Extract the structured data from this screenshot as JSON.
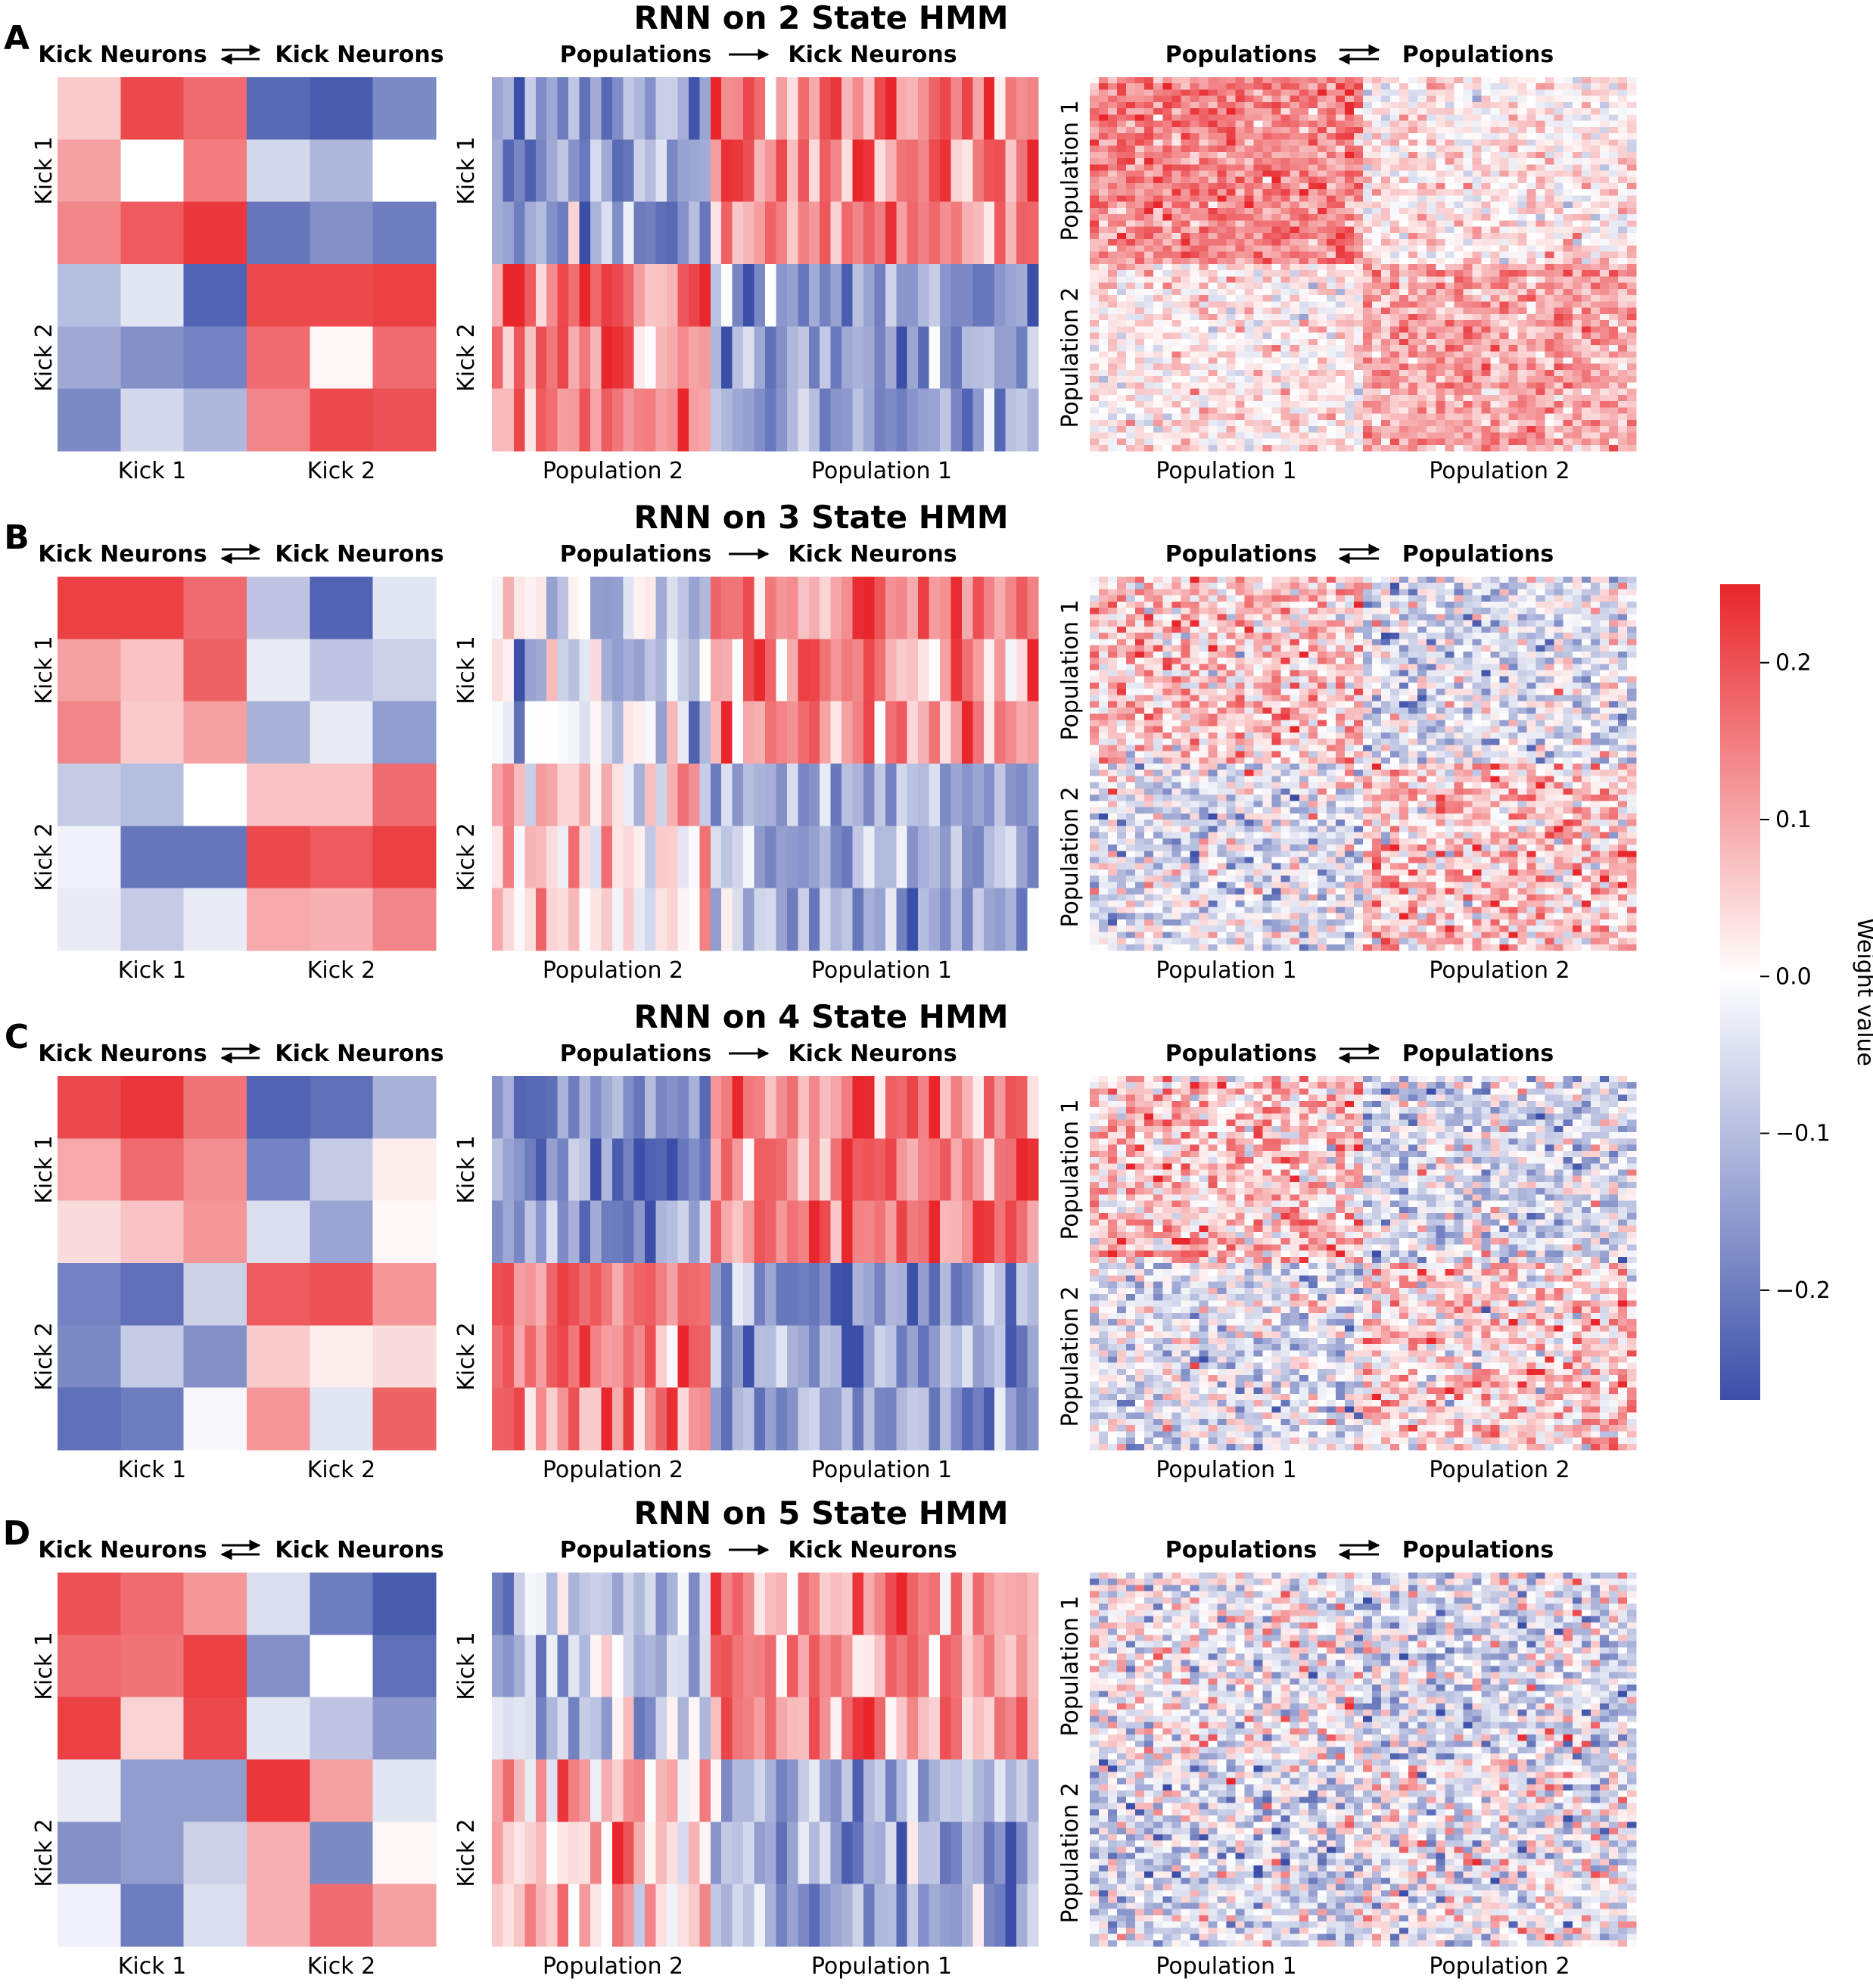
{
  "colors": {
    "positive": "#e8262b",
    "zero": "#ffffff",
    "negative": "#3b4fa8"
  },
  "colorbar": {
    "label": "Weight value",
    "vmin": -0.27,
    "vmax": 0.25,
    "ticks": [
      "0.2",
      "0.1",
      "0.0",
      "−0.1",
      "−0.2"
    ],
    "tick_values": [
      0.2,
      0.1,
      0.0,
      -0.1,
      -0.2
    ]
  },
  "chart_data": [
    {
      "panel": "A",
      "title": "RNN on 2 State HMM",
      "kk": {
        "type": "heatmap",
        "title_left": "Kick Neurons",
        "title_right": "Kick Neurons",
        "rows": [
          "Kick 1",
          "Kick 2"
        ],
        "cols": [
          "Kick 1",
          "Kick 2"
        ],
        "values": [
          [
            0.06,
            0.21,
            0.17,
            -0.23,
            -0.25,
            -0.18
          ],
          [
            0.11,
            0.0,
            0.15,
            -0.06,
            -0.11,
            0.0
          ],
          [
            0.14,
            0.19,
            0.23,
            -0.21,
            -0.17,
            -0.2
          ],
          [
            -0.1,
            -0.04,
            -0.24,
            0.21,
            0.21,
            0.22
          ],
          [
            -0.13,
            -0.17,
            -0.19,
            0.17,
            0.01,
            0.17
          ],
          [
            -0.18,
            -0.06,
            -0.11,
            0.14,
            0.21,
            0.2
          ]
        ]
      },
      "pk": {
        "type": "heatmap",
        "title_left": "Populations",
        "title_right": "Kick Neurons",
        "rows": [
          "Kick 1",
          "Kick 2"
        ],
        "cols": [
          "Population 2",
          "Population 1"
        ],
        "pattern": [
          -0.16,
          0.15
        ]
      },
      "pp": {
        "type": "heatmap",
        "title_left": "Populations",
        "title_right": "Populations",
        "rows": [
          "Population 1",
          "Population 2"
        ],
        "cols": [
          "Population 1",
          "Population 2"
        ],
        "pattern": [
          [
            0.14,
            0.02
          ],
          [
            0.02,
            0.1
          ]
        ],
        "noise": 0.05
      }
    },
    {
      "panel": "B",
      "title": "RNN on 3 State HMM",
      "kk": {
        "type": "heatmap",
        "title_left": "Kick Neurons",
        "title_right": "Kick Neurons",
        "rows": [
          "Kick 1",
          "Kick 2"
        ],
        "cols": [
          "Kick 1",
          "Kick 2"
        ],
        "values": [
          [
            0.22,
            0.22,
            0.17,
            -0.09,
            -0.24,
            -0.04
          ],
          [
            0.11,
            0.07,
            0.18,
            -0.03,
            -0.09,
            -0.07
          ],
          [
            0.14,
            0.06,
            0.11,
            -0.12,
            -0.03,
            -0.15
          ],
          [
            -0.08,
            -0.1,
            0.0,
            0.07,
            0.07,
            0.17
          ],
          [
            -0.02,
            -0.21,
            -0.21,
            0.21,
            0.19,
            0.22
          ],
          [
            -0.03,
            -0.08,
            -0.03,
            0.1,
            0.09,
            0.14
          ]
        ]
      },
      "pk": {
        "type": "heatmap",
        "title_left": "Populations",
        "title_right": "Kick Neurons",
        "rows": [
          "Kick 1",
          "Kick 2"
        ],
        "cols": [
          "Population 2",
          "Population 1"
        ],
        "pattern": [
          -0.06,
          0.13
        ]
      },
      "pp": {
        "type": "heatmap",
        "title_left": "Populations",
        "title_right": "Populations",
        "rows": [
          "Population 1",
          "Population 2"
        ],
        "cols": [
          "Population 1",
          "Population 2"
        ],
        "pattern": [
          [
            0.06,
            -0.05
          ],
          [
            -0.04,
            0.06
          ]
        ],
        "noise": 0.08
      }
    },
    {
      "panel": "C",
      "title": "RNN on 4 State HMM",
      "kk": {
        "type": "heatmap",
        "title_left": "Kick Neurons",
        "title_right": "Kick Neurons",
        "rows": [
          "Kick 1",
          "Kick 2"
        ],
        "cols": [
          "Kick 1",
          "Kick 2"
        ],
        "values": [
          [
            0.21,
            0.23,
            0.16,
            -0.24,
            -0.22,
            -0.12
          ],
          [
            0.1,
            0.17,
            0.13,
            -0.19,
            -0.08,
            0.02
          ],
          [
            0.04,
            0.07,
            0.12,
            -0.05,
            -0.14,
            0.01
          ],
          [
            -0.19,
            -0.22,
            -0.07,
            0.19,
            0.2,
            0.12
          ],
          [
            -0.18,
            -0.08,
            -0.17,
            0.06,
            0.02,
            0.04
          ],
          [
            -0.22,
            -0.2,
            -0.01,
            0.12,
            -0.04,
            0.18
          ]
        ]
      },
      "pk": {
        "type": "heatmap",
        "title_left": "Populations",
        "title_right": "Kick Neurons",
        "rows": [
          "Kick 1",
          "Kick 2"
        ],
        "cols": [
          "Population 2",
          "Population 1"
        ],
        "pattern": [
          -0.17,
          0.15
        ]
      },
      "pp": {
        "type": "heatmap",
        "title_left": "Populations",
        "title_right": "Populations",
        "rows": [
          "Population 1",
          "Population 2"
        ],
        "cols": [
          "Population 1",
          "Population 2"
        ],
        "pattern": [
          [
            0.07,
            -0.05
          ],
          [
            -0.04,
            0.05
          ]
        ],
        "noise": 0.08
      }
    },
    {
      "panel": "D",
      "title": "RNN on 5 State HMM",
      "kk": {
        "type": "heatmap",
        "title_left": "Kick Neurons",
        "title_right": "Kick Neurons",
        "rows": [
          "Kick 1",
          "Kick 2"
        ],
        "cols": [
          "Kick 1",
          "Kick 2"
        ],
        "values": [
          [
            0.2,
            0.17,
            0.12,
            -0.05,
            -0.2,
            -0.25
          ],
          [
            0.17,
            0.16,
            0.22,
            -0.17,
            0.0,
            -0.22
          ],
          [
            0.22,
            0.05,
            0.21,
            -0.04,
            -0.09,
            -0.16
          ],
          [
            -0.03,
            -0.15,
            -0.15,
            0.23,
            0.11,
            -0.04
          ],
          [
            -0.17,
            -0.15,
            -0.07,
            0.09,
            -0.18,
            0.01
          ],
          [
            -0.02,
            -0.2,
            -0.05,
            0.09,
            0.17,
            0.11
          ]
        ]
      },
      "pk": {
        "type": "heatmap",
        "title_left": "Populations",
        "title_right": "Kick Neurons",
        "rows": [
          "Kick 1",
          "Kick 2"
        ],
        "cols": [
          "Population 2",
          "Population 1"
        ],
        "pattern": [
          -0.08,
          0.12
        ]
      },
      "pp": {
        "type": "heatmap",
        "title_left": "Populations",
        "title_right": "Populations",
        "rows": [
          "Population 1",
          "Population 2"
        ],
        "cols": [
          "Population 1",
          "Population 2"
        ],
        "pattern": [
          [
            -0.01,
            -0.05
          ],
          [
            -0.05,
            -0.02
          ]
        ],
        "noise": 0.09
      }
    }
  ]
}
